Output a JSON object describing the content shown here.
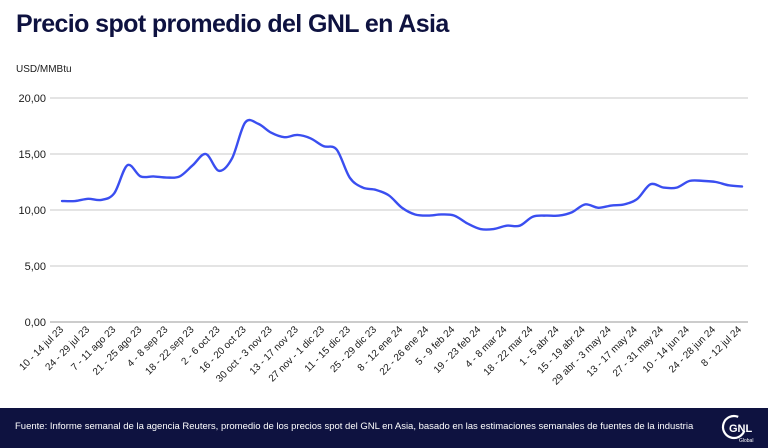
{
  "header": {
    "title": "Precio spot promedio del GNL en Asia",
    "unit": "USD/MMBtu"
  },
  "footer": {
    "source": "Fuente: Informe semanal de la agencia Reuters, promedio de los precios spot del GNL en Asia, basado en las estimaciones semanales de fuentes de la industria",
    "logo_text": "GNL",
    "logo_sub": "Global"
  },
  "colors": {
    "title": "#0e1240",
    "line": "#3a4ef0",
    "grid": "#c8c8c8",
    "footer_bg": "#0e1240"
  },
  "chart_data": {
    "type": "line",
    "title": "Precio spot promedio del GNL en Asia",
    "ylabel": "USD/MMBtu",
    "ylim": [
      0,
      20
    ],
    "yticks": [
      "0,00",
      "5,00",
      "10,00",
      "15,00",
      "20,00"
    ],
    "grid": true,
    "x_tick_labels": [
      "10 - 14 jul 23",
      "24 - 29 jul 23",
      "7 - 11 ago 23",
      "21 - 25 ago 23",
      "4 - 8 sep 23",
      "18 - 22 sep 23",
      "2 - 6 oct 23",
      "16 - 20 oct 23",
      "30 oct - 3 nov 23",
      "13 - 17 nov 23",
      "27 nov - 1 dic 23",
      "11 - 15 dic 23",
      "25 - 29 dic 23",
      "8 - 12 ene 24",
      "22 - 26 ene 24",
      "5 - 9 feb 24",
      "19 - 23 feb 24",
      "4 - 8 mar 24",
      "18 - 22 mar 24",
      "1 - 5 abr 24",
      "15 - 19 abr 24",
      "29 abr - 3 may 24",
      "13 - 17 may 24",
      "27 - 31 may 24",
      "10 - 14 jun 24",
      "24 - 28 jun 24",
      "8 - 12 jul 24"
    ],
    "series": [
      {
        "values": [
          10.8,
          10.8,
          11.0,
          10.9,
          11.5,
          14.0,
          13.0,
          13.0,
          12.9,
          13.0,
          14.0,
          15.0,
          13.5,
          14.6,
          17.8,
          17.7,
          16.9,
          16.5,
          16.7,
          16.4,
          15.7,
          15.4,
          12.9,
          12.0,
          11.8,
          11.3,
          10.2,
          9.6,
          9.5,
          9.6,
          9.5,
          8.8,
          8.3,
          8.3,
          8.6,
          8.6,
          9.4,
          9.5,
          9.5,
          9.8,
          10.5,
          10.2,
          10.4,
          10.5,
          11.0,
          12.3,
          12.0,
          12.0,
          12.6,
          12.6,
          12.5,
          12.2,
          12.1
        ]
      }
    ]
  }
}
